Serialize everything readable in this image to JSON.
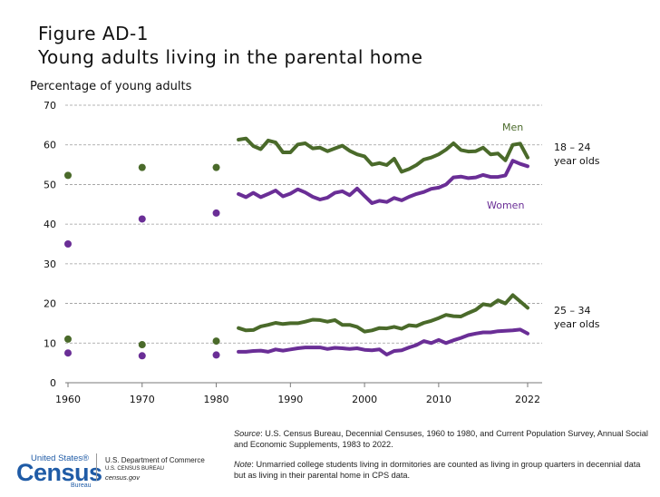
{
  "figure": {
    "line1": "Figure AD-1",
    "line2": "Young adults living in the parental home"
  },
  "source": {
    "source_label": "Source",
    "source_text": ": U.S. Census Bureau, Decennial Censuses, 1960 to 1980, and Current Population Survey, Annual Social and Economic Supplements, 1983 to 2022.",
    "note_label": "Note",
    "note_text": ": Unmarried college students living in dormitories are counted as living in group quarters in decennial data but as living in their parental home in CPS data."
  },
  "logo": {
    "top": "United States®",
    "main": "Census",
    "bottom": "Bureau"
  },
  "dept": {
    "line1": "U.S. Department of Commerce",
    "line2": "U.S. CENSUS BUREAU",
    "line3": "census.gov"
  },
  "colors": {
    "men": "#4a6a2a",
    "women": "#6a2e96",
    "grid": "#9a9a9a"
  },
  "chart_data": {
    "type": "line",
    "ylabel": "Percentage of young adults",
    "xlabel": "",
    "ylim": [
      0,
      70
    ],
    "yticks": [
      0,
      10,
      20,
      30,
      40,
      50,
      60,
      70
    ],
    "xlim": [
      1960,
      2022
    ],
    "xticks": [
      1960,
      1970,
      1980,
      1990,
      2000,
      2010,
      2022
    ],
    "grid": "horizontal dashed",
    "annotations": {
      "men": "Men",
      "women": "Women",
      "age1_line1": "18 – 24",
      "age1_line2": "year olds",
      "age2_line1": "25 – 34",
      "age2_line2": "year olds"
    },
    "series": [
      {
        "name": "Men",
        "group": "18 – 24",
        "color": "#4a6a2a",
        "points": [
          [
            1960,
            52.3
          ],
          [
            1970,
            54.3
          ],
          [
            1980,
            54.3
          ]
        ],
        "line_x": [
          1983,
          1984,
          1985,
          1986,
          1987,
          1988,
          1989,
          1990,
          1991,
          1992,
          1993,
          1994,
          1995,
          1996,
          1997,
          1998,
          1999,
          2000,
          2001,
          2002,
          2003,
          2004,
          2005,
          2006,
          2007,
          2008,
          2009,
          2010,
          2011,
          2012,
          2013,
          2014,
          2015,
          2016,
          2017,
          2018,
          2019,
          2020,
          2021,
          2022
        ],
        "line_y": [
          61.3,
          61.6,
          59.7,
          58.9,
          61.1,
          60.6,
          58.1,
          58.1,
          60.1,
          60.4,
          59.1,
          59.3,
          58.4,
          59.1,
          59.8,
          58.5,
          57.6,
          57.1,
          55.0,
          55.4,
          54.9,
          56.5,
          53.2,
          53.9,
          54.9,
          56.3,
          56.8,
          57.6,
          58.8,
          60.4,
          58.7,
          58.3,
          58.4,
          59.3,
          57.6,
          57.8,
          56.1,
          60.0,
          60.3,
          56.8
        ]
      },
      {
        "name": "Women",
        "group": "18 – 24",
        "color": "#6a2e96",
        "points": [
          [
            1960,
            35.0
          ],
          [
            1970,
            41.3
          ],
          [
            1980,
            42.8
          ]
        ],
        "line_x": [
          1983,
          1984,
          1985,
          1986,
          1987,
          1988,
          1989,
          1990,
          1991,
          1992,
          1993,
          1994,
          1995,
          1996,
          1997,
          1998,
          1999,
          2000,
          2001,
          2002,
          2003,
          2004,
          2005,
          2006,
          2007,
          2008,
          2009,
          2010,
          2011,
          2012,
          2013,
          2014,
          2015,
          2016,
          2017,
          2018,
          2019,
          2020,
          2021,
          2022
        ],
        "line_y": [
          47.6,
          46.8,
          47.9,
          46.8,
          47.6,
          48.5,
          47.0,
          47.7,
          48.8,
          48.0,
          46.9,
          46.2,
          46.7,
          47.9,
          48.3,
          47.3,
          49.0,
          47.1,
          45.3,
          45.9,
          45.6,
          46.6,
          46.0,
          46.9,
          47.6,
          48.1,
          48.9,
          49.2,
          50.0,
          51.8,
          52.0,
          51.6,
          51.8,
          52.4,
          51.9,
          51.9,
          52.3,
          56.0,
          55.2,
          54.6
        ]
      },
      {
        "name": "Men",
        "group": "25 – 34",
        "color": "#4a6a2a",
        "points": [
          [
            1960,
            11.0
          ],
          [
            1970,
            9.6
          ],
          [
            1980,
            10.5
          ]
        ],
        "line_x": [
          1983,
          1984,
          1985,
          1986,
          1987,
          1988,
          1989,
          1990,
          1991,
          1992,
          1993,
          1994,
          1995,
          1996,
          1997,
          1998,
          1999,
          2000,
          2001,
          2002,
          2003,
          2004,
          2005,
          2006,
          2007,
          2008,
          2009,
          2010,
          2011,
          2012,
          2013,
          2014,
          2015,
          2016,
          2017,
          2018,
          2019,
          2020,
          2021,
          2022
        ],
        "line_y": [
          13.8,
          13.2,
          13.3,
          14.2,
          14.6,
          15.1,
          14.8,
          15.0,
          15.0,
          15.4,
          15.9,
          15.8,
          15.4,
          15.8,
          14.6,
          14.6,
          14.1,
          12.9,
          13.2,
          13.8,
          13.7,
          14.1,
          13.6,
          14.5,
          14.3,
          15.1,
          15.6,
          16.3,
          17.1,
          16.8,
          16.7,
          17.6,
          18.4,
          19.8,
          19.5,
          20.8,
          20.0,
          22.1,
          20.5,
          18.9
        ]
      },
      {
        "name": "Women",
        "group": "25 – 34",
        "color": "#6a2e96",
        "points": [
          [
            1960,
            7.5
          ],
          [
            1970,
            6.8
          ],
          [
            1980,
            7.0
          ]
        ],
        "line_x": [
          1983,
          1984,
          1985,
          1986,
          1987,
          1988,
          1989,
          1990,
          1991,
          1992,
          1993,
          1994,
          1995,
          1996,
          1997,
          1998,
          1999,
          2000,
          2001,
          2002,
          2003,
          2004,
          2005,
          2006,
          2007,
          2008,
          2009,
          2010,
          2011,
          2012,
          2013,
          2014,
          2015,
          2016,
          2017,
          2018,
          2019,
          2020,
          2021,
          2022
        ],
        "line_y": [
          7.8,
          7.8,
          8.0,
          8.1,
          7.8,
          8.4,
          8.1,
          8.4,
          8.7,
          8.9,
          8.9,
          8.9,
          8.5,
          8.8,
          8.7,
          8.5,
          8.7,
          8.3,
          8.2,
          8.4,
          7.1,
          8.0,
          8.2,
          8.9,
          9.5,
          10.5,
          10.0,
          10.8,
          10.0,
          10.7,
          11.3,
          12.0,
          12.4,
          12.7,
          12.7,
          13.0,
          13.1,
          13.2,
          13.4,
          12.4
        ]
      }
    ]
  }
}
